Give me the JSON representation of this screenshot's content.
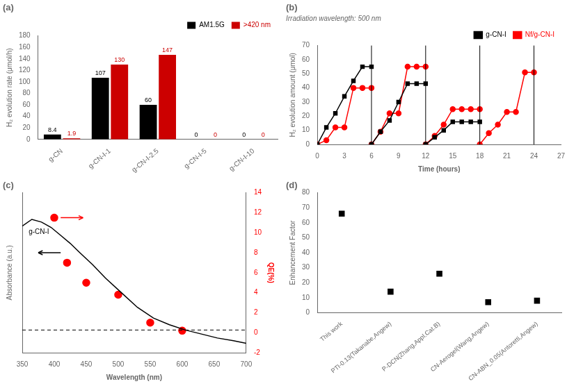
{
  "chart_data": [
    {
      "type": "bar",
      "title": "(a)",
      "categories": [
        "g-CN",
        "g-CN-I-1",
        "g-CN-I-2.5",
        "g-CN-I-5",
        "g-CN-I-10"
      ],
      "series": [
        {
          "name": "AM1.5G",
          "color": "#000000",
          "values": [
            8.4,
            107,
            60,
            0,
            0
          ]
        },
        {
          "name": ">420 nm",
          "color": "#cc0000",
          "values": [
            1.9,
            130,
            147,
            0,
            0
          ]
        }
      ],
      "ylabel": "H₂ evolution rate (μmol/h)",
      "ylim": [
        0,
        180
      ],
      "yticks": [
        0,
        20,
        40,
        60,
        80,
        100,
        120,
        140,
        160,
        180
      ],
      "data_labels": true,
      "legend": "upper right",
      "grid": false
    },
    {
      "type": "line",
      "title": "(b)",
      "subtitle": "Irradiation wavelength: 500 nm",
      "series": [
        {
          "name": "g-CN-I",
          "color": "#000000",
          "marker": "square",
          "x": [
            0,
            1,
            2,
            3,
            4,
            5,
            6,
            null,
            6,
            7,
            8,
            9,
            10,
            11,
            12,
            null,
            12,
            13,
            14,
            15,
            16,
            17,
            18
          ],
          "values": [
            0,
            12,
            22,
            34,
            45,
            55,
            55,
            null,
            0,
            9,
            17,
            30,
            43,
            43,
            43,
            null,
            0,
            5,
            10,
            16,
            16,
            16,
            16
          ]
        },
        {
          "name": "Nf/g-CN-I",
          "color": "red",
          "marker": "circle",
          "x": [
            0,
            1,
            2,
            3,
            4,
            5,
            6,
            null,
            6,
            7,
            8,
            9,
            10,
            11,
            12,
            null,
            12,
            13,
            14,
            15,
            16,
            17,
            18,
            null,
            18,
            19,
            20,
            21,
            22,
            23,
            24
          ],
          "values": [
            0,
            3,
            12,
            12,
            40,
            40,
            40,
            null,
            0,
            9,
            22,
            22,
            55,
            55,
            55,
            null,
            0,
            6,
            14,
            25,
            25,
            25,
            25,
            null,
            0,
            8,
            14,
            23,
            23,
            51,
            51
          ]
        }
      ],
      "vlines": [
        6,
        12,
        18,
        24
      ],
      "xlabel": "Time (hours)",
      "ylabel": "H₂ evolution amount (μmol)",
      "xlim": [
        0,
        27
      ],
      "xticks": [
        0,
        3,
        6,
        9,
        12,
        15,
        18,
        21,
        24,
        27
      ],
      "ylim": [
        0,
        70
      ],
      "yticks": [
        0,
        10,
        20,
        30,
        40,
        50,
        60,
        70
      ],
      "legend": "upper right",
      "grid": false
    },
    {
      "type": "line",
      "title": "(c)",
      "series": [
        {
          "type": "line",
          "color": "#000000",
          "x": [
            350,
            365,
            380,
            395,
            410,
            425,
            440,
            460,
            480,
            505,
            530,
            555,
            580,
            605,
            630,
            655,
            680,
            700
          ],
          "values": [
            0.75,
            0.8,
            0.78,
            0.74,
            0.68,
            0.62,
            0.55,
            0.46,
            0.36,
            0.25,
            0.14,
            0.06,
            0.01,
            -0.03,
            -0.06,
            -0.09,
            -0.11,
            -0.13
          ]
        },
        {
          "type": "scatter",
          "color": "red",
          "axis": "y2",
          "marker": "circle",
          "x": [
            400,
            420,
            450,
            500,
            550,
            600
          ],
          "values": [
            11.5,
            7.0,
            5.0,
            3.8,
            1.0,
            0.2
          ]
        }
      ],
      "hlines": [
        {
          "y": -0.03,
          "line_style": "dashed",
          "color": "#000000"
        }
      ],
      "annotations": [
        {
          "text": "g-CN-I",
          "x": 360,
          "y": 0.68
        }
      ],
      "arrows": [
        {
          "from": [
            410,
            11.5
          ],
          "to": [
            445,
            11.5
          ],
          "axis": "y2",
          "color": "red"
        },
        {
          "from": [
            410,
            0.55
          ],
          "to": [
            375,
            0.55
          ],
          "color": "#000000"
        }
      ],
      "xlabel": "Wavelength (nm)",
      "ylabel": "Absorbance (a.u.)",
      "y2label": "QE(%)",
      "xlim": [
        350,
        700
      ],
      "xticks": [
        350,
        400,
        450,
        500,
        550,
        600,
        650,
        700
      ],
      "ylim": [
        -0.2,
        1.0
      ],
      "yticks": [],
      "y2lim": [
        -2,
        14
      ],
      "y2ticks": [
        -2,
        0,
        2,
        4,
        6,
        8,
        10,
        12,
        14
      ],
      "legend": false,
      "grid": false
    },
    {
      "type": "scatter",
      "title": "(d)",
      "categories": [
        "This work",
        "PTI-0.13(Takanabe,Angew)",
        "P-DCN(Zhang,Appl.Cat.B)",
        "CN-Aerogel(Wang,Angew)",
        "CN-ABN_0.05(Antoretti,Angew)"
      ],
      "series": [
        {
          "color": "#000000",
          "marker": "square",
          "values": [
            66,
            14,
            26,
            7,
            8
          ]
        }
      ],
      "ylabel": "Enhancement Factor",
      "ylim": [
        0,
        80
      ],
      "yticks": [
        0,
        10,
        20,
        30,
        40,
        50,
        60,
        70,
        80
      ],
      "legend": false,
      "grid": false
    }
  ]
}
